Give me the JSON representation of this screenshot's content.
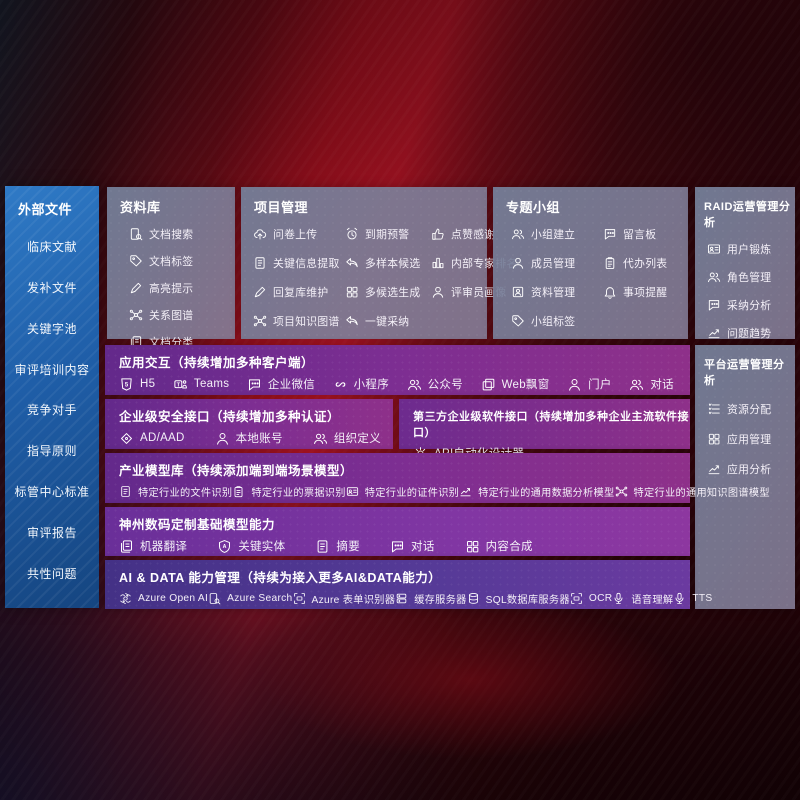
{
  "colors": {
    "background_red": "#8c0f1c",
    "sidebar_blue": "#1f5ea8",
    "panel_gray": "#76809b",
    "row_purple": "#7d2e92",
    "row_violet": "#8136a3",
    "row_indigo": "#553a97"
  },
  "sidebar": {
    "title": "外部文件",
    "items": [
      "临床文献",
      "发补文件",
      "关键字池",
      "审评培训内容",
      "竞争对手",
      "指导原则",
      "标管中心标准",
      "审评报告",
      "共性问题"
    ]
  },
  "top_panels": {
    "data_library": {
      "title": "资料库",
      "items": [
        {
          "label": "文档搜索",
          "icon": "doc-search-icon"
        },
        {
          "label": "文档标签",
          "icon": "tag-icon"
        },
        {
          "label": "高亮提示",
          "icon": "highlighter-icon"
        },
        {
          "label": "关系图谱",
          "icon": "relation-graph-icon"
        },
        {
          "label": "文档分类",
          "icon": "doc-category-icon"
        }
      ]
    },
    "project_management": {
      "title": "项目管理",
      "items": [
        {
          "label": "问卷上传",
          "icon": "cloud-upload-icon"
        },
        {
          "label": "到期预警",
          "icon": "alarm-icon"
        },
        {
          "label": "点赞感谢",
          "icon": "thumbs-up-icon"
        },
        {
          "label": "关键信息提取",
          "icon": "doc-extract-icon"
        },
        {
          "label": "多样本候选",
          "icon": "reply-arrow-icon"
        },
        {
          "label": "内部专家排名",
          "icon": "ranking-icon"
        },
        {
          "label": "回复库维护",
          "icon": "pen-icon"
        },
        {
          "label": "多候选生成",
          "icon": "grid-icon"
        },
        {
          "label": "评审员画像",
          "icon": "person-icon"
        },
        {
          "label": "项目知识图谱",
          "icon": "knowledge-graph-icon"
        },
        {
          "label": "一键采纳",
          "icon": "adopt-arrow-icon"
        }
      ]
    },
    "topic_groups": {
      "title": "专题小组",
      "items": [
        {
          "label": "小组建立",
          "icon": "users-icon"
        },
        {
          "label": "留言板",
          "icon": "bbs-icon"
        },
        {
          "label": "成员管理",
          "icon": "member-icon"
        },
        {
          "label": "代办列表",
          "icon": "todo-list-icon"
        },
        {
          "label": "资料管理",
          "icon": "album-icon"
        },
        {
          "label": "事项提醒",
          "icon": "bell-icon"
        },
        {
          "label": "小组标签",
          "icon": "tag-icon"
        }
      ]
    }
  },
  "right_panels": {
    "raid_analysis": {
      "title": "RAID运营管理分析",
      "items": [
        {
          "label": "用户锻炼",
          "icon": "user-card-icon"
        },
        {
          "label": "角色管理",
          "icon": "roles-icon"
        },
        {
          "label": "采纳分析",
          "icon": "qa-chat-icon"
        },
        {
          "label": "问题趋势",
          "icon": "trend-icon"
        }
      ]
    },
    "platform_analysis": {
      "title": "平台运营管理分析",
      "items": [
        {
          "label": "资源分配",
          "icon": "resource-list-icon"
        },
        {
          "label": "应用管理",
          "icon": "apps-grid-icon"
        },
        {
          "label": "应用分析",
          "icon": "app-chart-icon"
        }
      ]
    }
  },
  "main_rows": {
    "app_interaction": {
      "title": "应用交互（持续增加多种客户端）",
      "items": [
        {
          "label": "H5",
          "icon": "h5-icon"
        },
        {
          "label": "Teams",
          "icon": "teams-icon"
        },
        {
          "label": "企业微信",
          "icon": "wechat-work-icon"
        },
        {
          "label": "小程序",
          "icon": "miniprogram-icon"
        },
        {
          "label": "公众号",
          "icon": "official-account-icon"
        },
        {
          "label": "Web飘窗",
          "icon": "web-window-icon"
        },
        {
          "label": "门户",
          "icon": "portal-icon"
        },
        {
          "label": "对话",
          "icon": "dialog-icon"
        }
      ]
    },
    "security_api": {
      "title": "企业级安全接口（持续增加多种认证）",
      "items": [
        {
          "label": "AD/AAD",
          "icon": "ad-icon"
        },
        {
          "label": "本地账号",
          "icon": "local-account-icon"
        },
        {
          "label": "组织定义",
          "icon": "org-icon"
        }
      ]
    },
    "thirdparty_api": {
      "title": "第三方企业级软件接口（持续增加多种企业主流软件接口）",
      "items": [
        {
          "label": "API自动化设计器",
          "icon": "api-designer-icon"
        }
      ]
    },
    "industry_models": {
      "title": "产业模型库（持续添加端到端场景模型）",
      "items": [
        {
          "label": "特定行业的文件识别",
          "icon": "file-recognition-icon"
        },
        {
          "label": "特定行业的票据识别",
          "icon": "receipt-recognition-icon"
        },
        {
          "label": "特定行业的证件识别",
          "icon": "id-recognition-icon"
        },
        {
          "label": "特定行业的通用数据分析模型",
          "icon": "data-analysis-model-icon"
        },
        {
          "label": "特定行业的通用知识图谱模型",
          "icon": "knowledge-graph-model-icon"
        }
      ]
    },
    "base_models": {
      "title": "神州数码定制基础模型能力",
      "items": [
        {
          "label": "机器翻译",
          "icon": "translate-icon"
        },
        {
          "label": "关键实体",
          "icon": "entity-icon"
        },
        {
          "label": "摘要",
          "icon": "summary-icon"
        },
        {
          "label": "对话",
          "icon": "chat-icon"
        },
        {
          "label": "内容合成",
          "icon": "compose-icon"
        }
      ]
    },
    "ai_data": {
      "title": "AI & DATA 能力管理（持续为接入更多AI&DATA能力）",
      "items": [
        {
          "label": "Azure Open AI",
          "icon": "openai-icon"
        },
        {
          "label": "Azure Search",
          "icon": "azure-search-icon"
        },
        {
          "label": "Azure 表单识别器",
          "icon": "form-recognizer-icon"
        },
        {
          "label": "缓存服务器",
          "icon": "cache-server-icon"
        },
        {
          "label": "SQL数据库服务器",
          "icon": "sql-db-icon"
        },
        {
          "label": "OCR",
          "icon": "ocr-icon"
        },
        {
          "label": "语音理解",
          "icon": "speech-icon"
        },
        {
          "label": "TTS",
          "icon": "tts-icon"
        }
      ]
    }
  }
}
